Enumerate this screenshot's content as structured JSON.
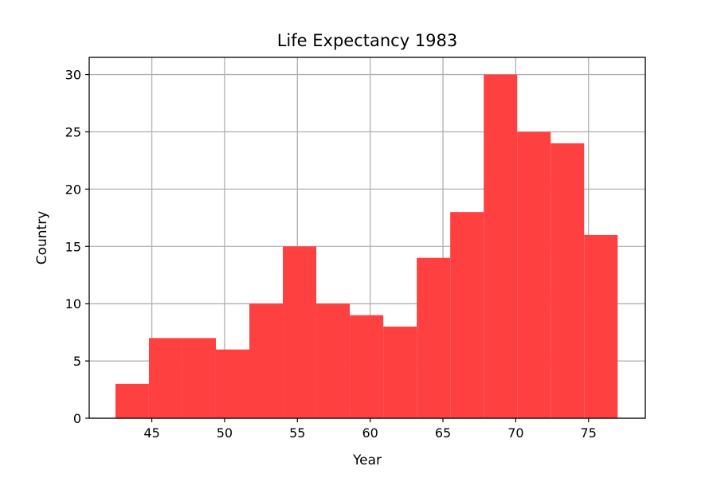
{
  "chart_data": {
    "type": "bar",
    "subtype": "histogram",
    "title": "Life Expectancy 1983",
    "xlabel": "Year",
    "ylabel": "Country",
    "bar_color": "#ff4040",
    "grid": true,
    "xlim": [
      40.7,
      78.9
    ],
    "ylim": [
      0,
      31.5
    ],
    "xticks": [
      45,
      50,
      55,
      60,
      65,
      70,
      75
    ],
    "yticks": [
      0,
      5,
      10,
      15,
      20,
      25,
      30
    ],
    "bins": [
      {
        "start": 42.5,
        "end": 44.8,
        "count": 3
      },
      {
        "start": 44.8,
        "end": 47.1,
        "count": 7
      },
      {
        "start": 47.1,
        "end": 49.4,
        "count": 7
      },
      {
        "start": 49.4,
        "end": 51.7,
        "count": 6
      },
      {
        "start": 51.7,
        "end": 54.0,
        "count": 10
      },
      {
        "start": 54.0,
        "end": 56.3,
        "count": 15
      },
      {
        "start": 56.3,
        "end": 58.6,
        "count": 10
      },
      {
        "start": 58.6,
        "end": 60.9,
        "count": 9
      },
      {
        "start": 60.9,
        "end": 63.2,
        "count": 8
      },
      {
        "start": 63.2,
        "end": 65.5,
        "count": 14
      },
      {
        "start": 65.5,
        "end": 67.8,
        "count": 18
      },
      {
        "start": 67.8,
        "end": 70.1,
        "count": 30
      },
      {
        "start": 70.1,
        "end": 72.4,
        "count": 25
      },
      {
        "start": 72.4,
        "end": 74.7,
        "count": 24
      },
      {
        "start": 74.7,
        "end": 77.0,
        "count": 16
      }
    ]
  }
}
